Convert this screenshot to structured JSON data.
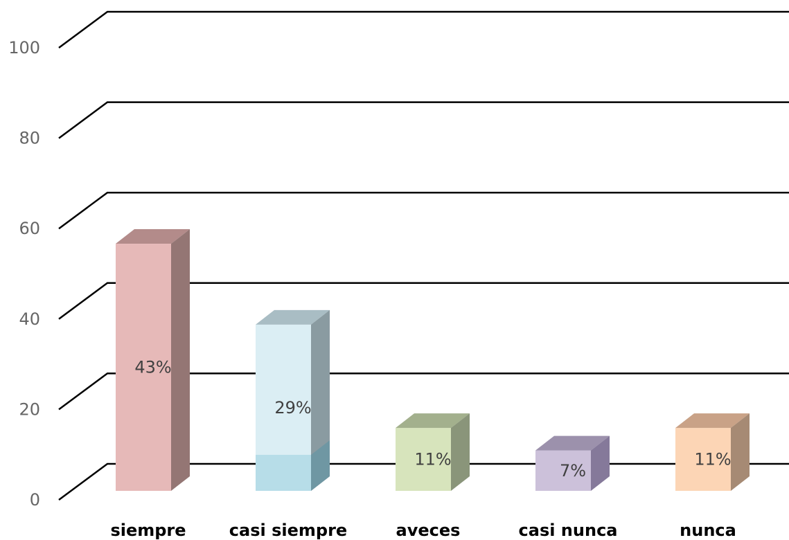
{
  "chart_data": {
    "type": "bar",
    "title": "",
    "xlabel": "",
    "ylabel": "",
    "ylim": [
      0,
      100
    ],
    "yticks": [
      0,
      20,
      40,
      60,
      80,
      100
    ],
    "grid": true,
    "legend": "none",
    "three_d": true,
    "categories": [
      "siempre",
      "casi siempre",
      "aveces",
      "casi nunca",
      "nunca"
    ],
    "values": [
      55,
      37,
      14,
      9,
      14
    ],
    "data_labels": [
      "43%",
      "29%",
      "11%",
      "7%",
      "11%"
    ],
    "colors": {
      "front": [
        "#e6b9b8",
        "#dbeef4",
        "#d7e4bc",
        "#ccc1da",
        "#fcd5b5"
      ],
      "top": [
        "#b38b8a",
        "#a9bdc4",
        "#a3b08d",
        "#9c91ac",
        "#c9a287"
      ],
      "side": [
        "#947674",
        "#8a9ba1",
        "#8a957a",
        "#85799a",
        "#a68a74"
      ],
      "front_lower_casi_siempre": "#b7dde8",
      "side_lower_casi_siempre": "#6f97a3"
    }
  }
}
